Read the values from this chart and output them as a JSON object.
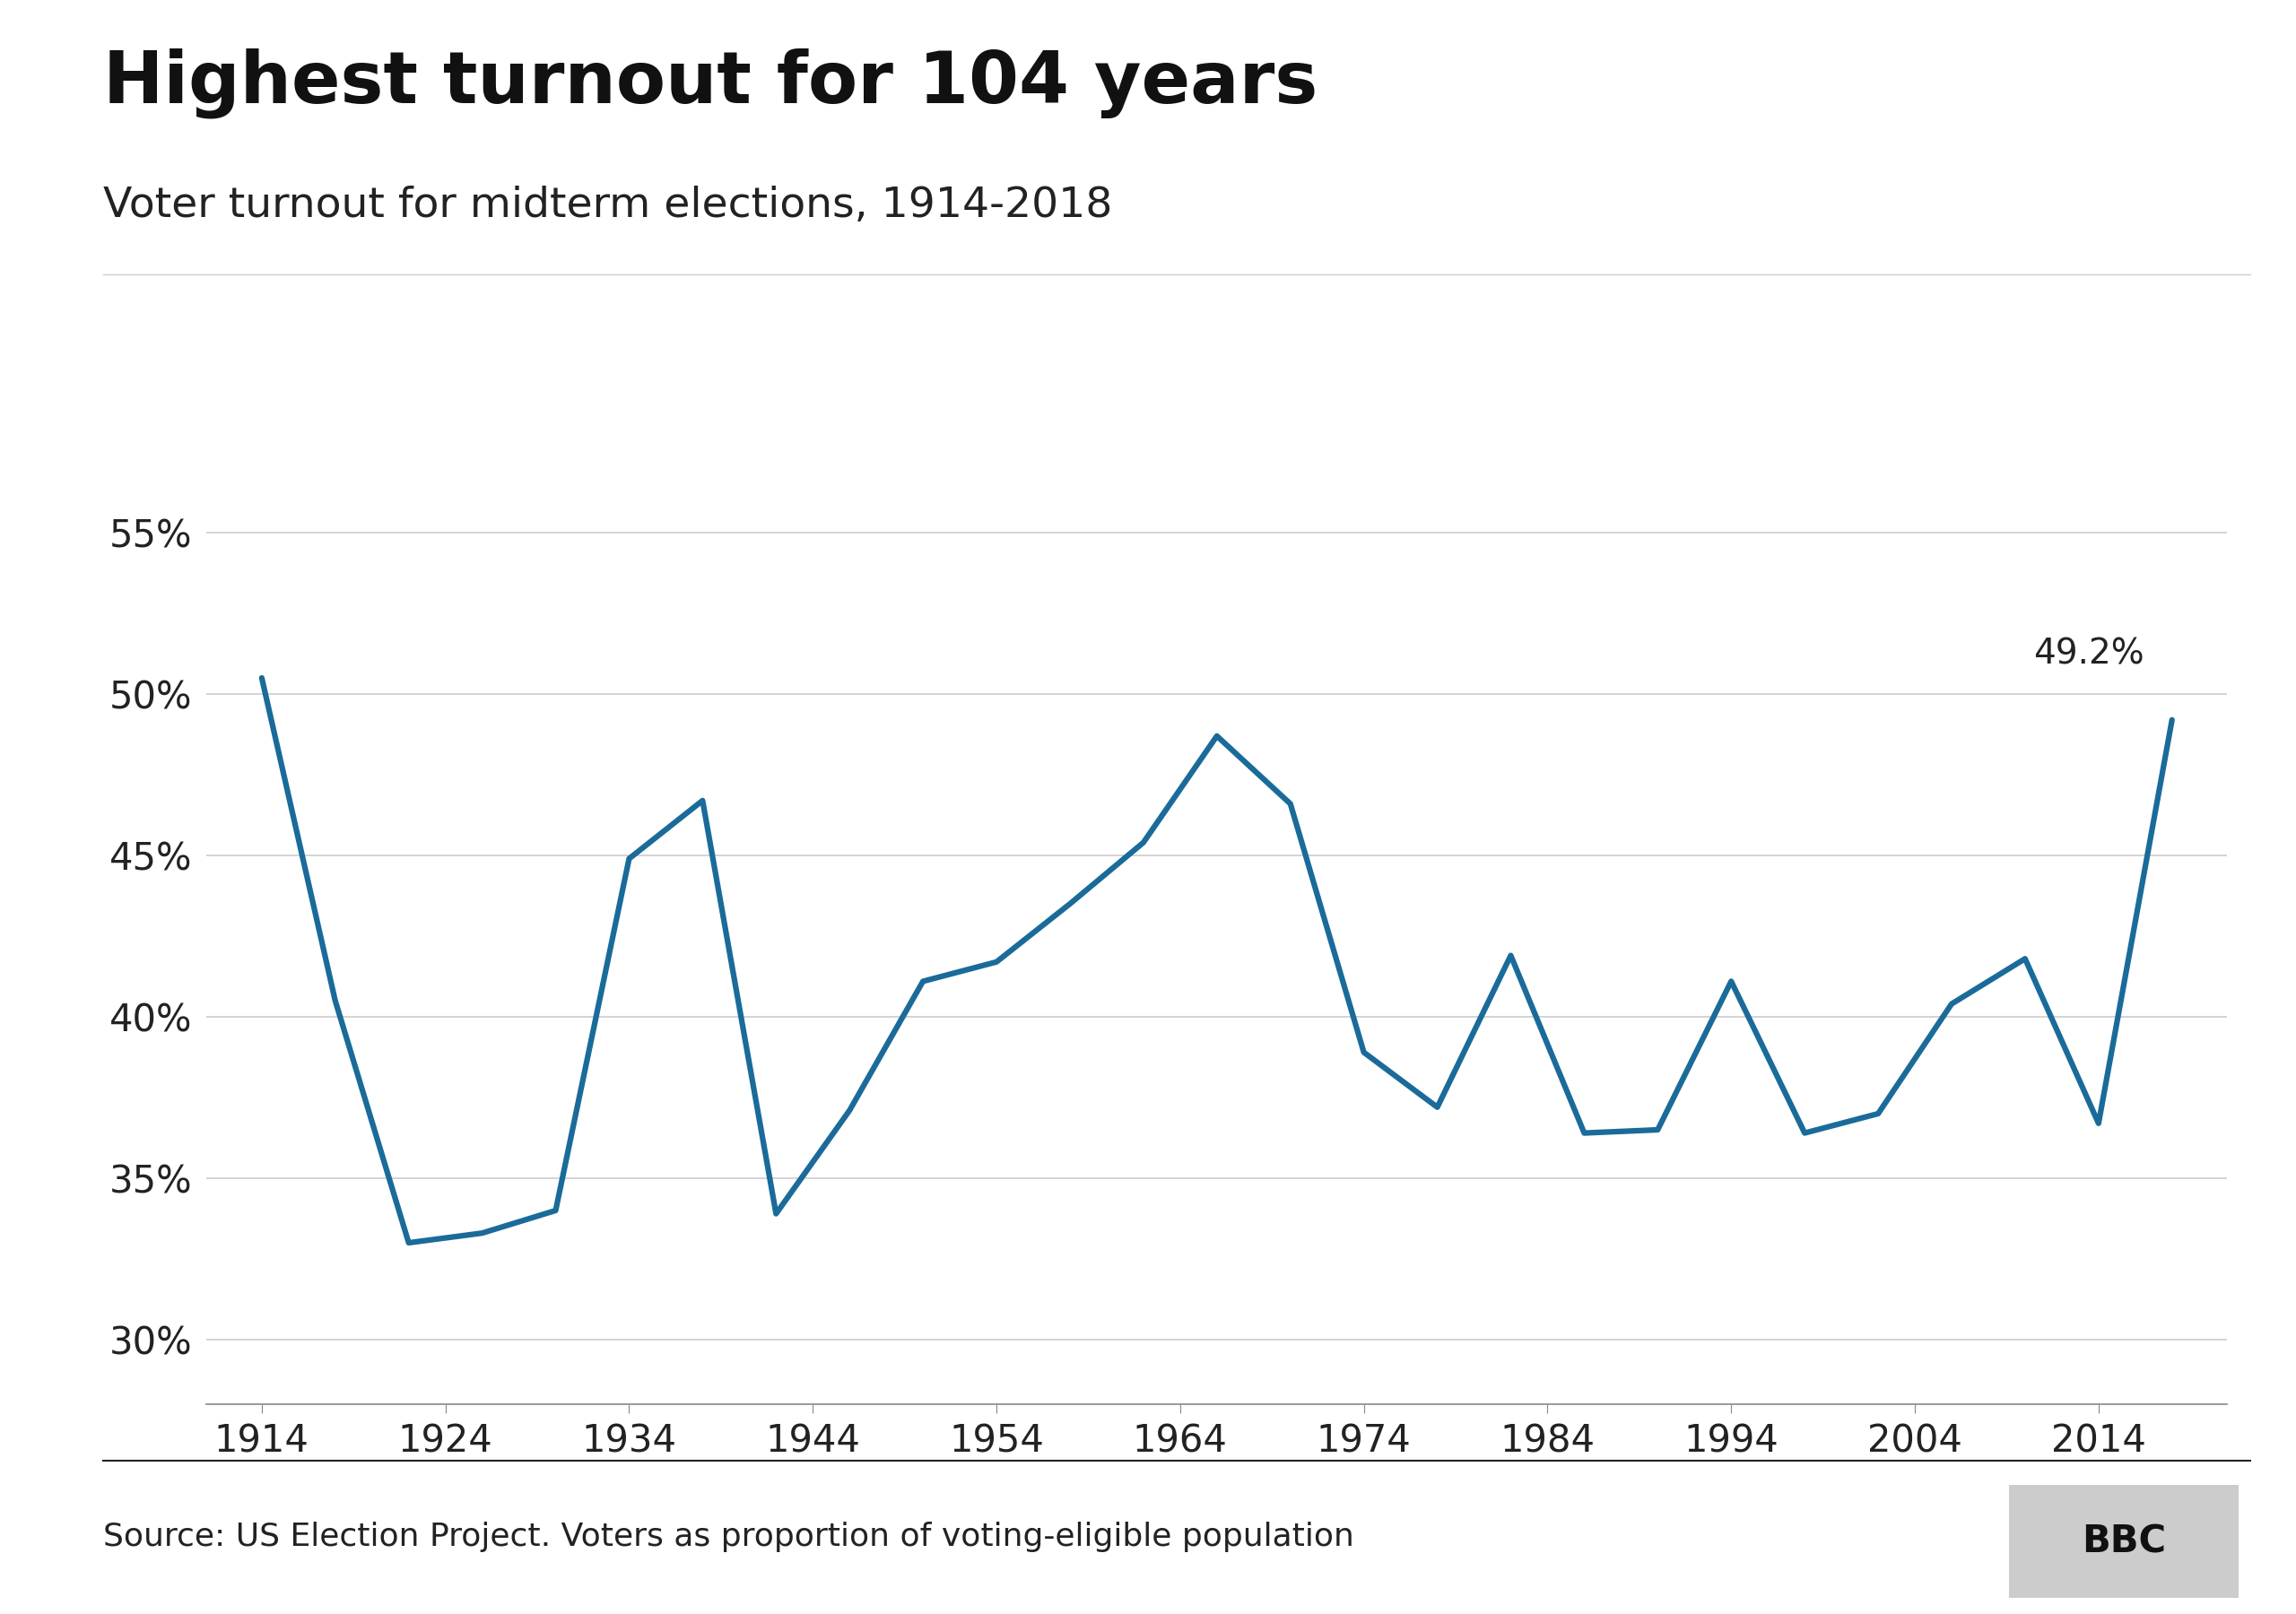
{
  "title": "Highest turnout for 104 years",
  "subtitle": "Voter turnout for midterm elections, 1914-2018",
  "source": "Source: US Election Project. Voters as proportion of voting-eligible population",
  "years": [
    1914,
    1918,
    1922,
    1926,
    1930,
    1934,
    1938,
    1942,
    1946,
    1950,
    1954,
    1958,
    1962,
    1966,
    1970,
    1974,
    1978,
    1982,
    1986,
    1990,
    1994,
    1998,
    2002,
    2006,
    2010,
    2014,
    2018
  ],
  "turnout": [
    50.5,
    40.5,
    33.0,
    33.3,
    34.0,
    44.9,
    46.7,
    33.9,
    37.1,
    41.1,
    41.7,
    43.5,
    45.4,
    48.7,
    46.6,
    38.9,
    37.2,
    41.9,
    36.4,
    36.5,
    41.1,
    36.4,
    37.0,
    40.4,
    41.8,
    36.7,
    49.2
  ],
  "line_color": "#1a6b99",
  "line_width": 4.5,
  "annotation_text": "49.2%",
  "annotation_year": 2018,
  "annotation_value": 49.2,
  "yticks": [
    30,
    35,
    40,
    45,
    50,
    55
  ],
  "ytick_labels": [
    "30%",
    "35%",
    "40%",
    "45%",
    "50%",
    "55%"
  ],
  "xticks": [
    1914,
    1924,
    1934,
    1944,
    1954,
    1964,
    1974,
    1984,
    1994,
    2004,
    2014
  ],
  "ylim": [
    28.0,
    57.0
  ],
  "xlim": [
    1911,
    2021
  ],
  "bg_color": "#ffffff",
  "grid_color": "#cccccc",
  "title_fontsize": 58,
  "subtitle_fontsize": 34,
  "source_fontsize": 26,
  "tick_fontsize": 30,
  "annotation_fontsize": 28
}
